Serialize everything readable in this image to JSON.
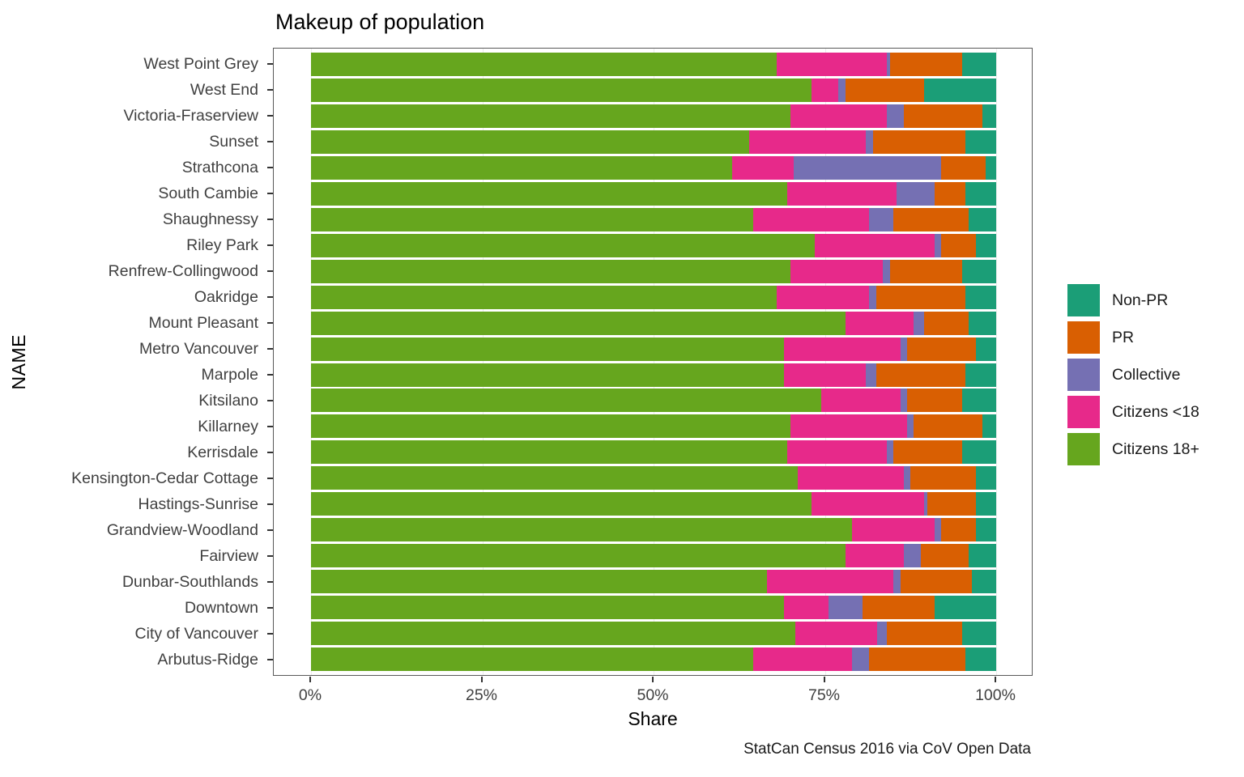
{
  "title": "Makeup of population",
  "x_axis": {
    "label": "Share",
    "ticks": [
      "0%",
      "25%",
      "50%",
      "75%",
      "100%"
    ],
    "tick_values": [
      0,
      25,
      50,
      75,
      100
    ]
  },
  "y_axis": {
    "label": "NAME"
  },
  "caption": "StatCan Census 2016 via CoV Open Data",
  "legend": [
    {
      "label": "Non-PR",
      "color": "#1B9E77"
    },
    {
      "label": "PR",
      "color": "#D95F02"
    },
    {
      "label": "Collective",
      "color": "#7570B3"
    },
    {
      "label": "Citizens <18",
      "color": "#E7298A"
    },
    {
      "label": "Citizens 18+",
      "color": "#66A61E"
    }
  ],
  "chart_data": {
    "type": "bar",
    "orientation": "horizontal",
    "stacked": true,
    "title": "Makeup of population",
    "xlabel": "Share",
    "ylabel": "NAME",
    "xlim": [
      0,
      100
    ],
    "grid": "major-vertical",
    "legend_position": "right",
    "caption": "StatCan Census 2016 via CoV Open Data",
    "stack_order_left_to_right": [
      "Citizens 18+",
      "Citizens <18",
      "Collective",
      "PR",
      "Non-PR"
    ],
    "colors": {
      "Non-PR": "#1B9E77",
      "PR": "#D95F02",
      "Collective": "#7570B3",
      "Citizens <18": "#E7298A",
      "Citizens 18+": "#66A61E"
    },
    "categories": [
      "West Point Grey",
      "West End",
      "Victoria-Fraserview",
      "Sunset",
      "Strathcona",
      "South Cambie",
      "Shaughnessy",
      "Riley Park",
      "Renfrew-Collingwood",
      "Oakridge",
      "Mount Pleasant",
      "Metro Vancouver",
      "Marpole",
      "Kitsilano",
      "Killarney",
      "Kerrisdale",
      "Kensington-Cedar Cottage",
      "Hastings-Sunrise",
      "Grandview-Woodland",
      "Fairview",
      "Dunbar-Southlands",
      "Downtown",
      "City of Vancouver",
      "Arbutus-Ridge"
    ],
    "series": [
      {
        "name": "Citizens 18+",
        "values": [
          68,
          73,
          70,
          64,
          61.5,
          69.5,
          64.5,
          73.5,
          70,
          68,
          78,
          69,
          69,
          74.5,
          70,
          69.5,
          71,
          73,
          79,
          78,
          66.5,
          69,
          71,
          64.5
        ]
      },
      {
        "name": "Citizens <18",
        "values": [
          16,
          4,
          14,
          17,
          9,
          16,
          17,
          17.5,
          13.5,
          13.5,
          10,
          17,
          12,
          11.5,
          17,
          14.5,
          15.5,
          16.5,
          12,
          8.5,
          18.5,
          6.5,
          12,
          14.5
        ]
      },
      {
        "name": "Collective",
        "values": [
          0.5,
          1,
          2.5,
          1,
          21.5,
          5.5,
          3.5,
          1,
          1,
          1,
          1.5,
          1,
          1.5,
          1,
          1,
          1,
          1,
          0.5,
          1,
          2.5,
          1,
          5,
          1.5,
          2.5
        ]
      },
      {
        "name": "PR",
        "values": [
          10.5,
          11.5,
          11.5,
          13.5,
          6.5,
          4.5,
          11,
          5,
          10.5,
          13,
          6.5,
          10,
          13,
          8,
          10,
          10,
          9.5,
          7,
          5,
          7,
          10.5,
          10.5,
          11,
          14
        ]
      },
      {
        "name": "Non-PR",
        "values": [
          5,
          10.5,
          2,
          4.5,
          1.5,
          4.5,
          4,
          3,
          5,
          4.5,
          4,
          3,
          4.5,
          5,
          2,
          5,
          3,
          3,
          3,
          4,
          3.5,
          9,
          5,
          4.5
        ]
      }
    ]
  }
}
